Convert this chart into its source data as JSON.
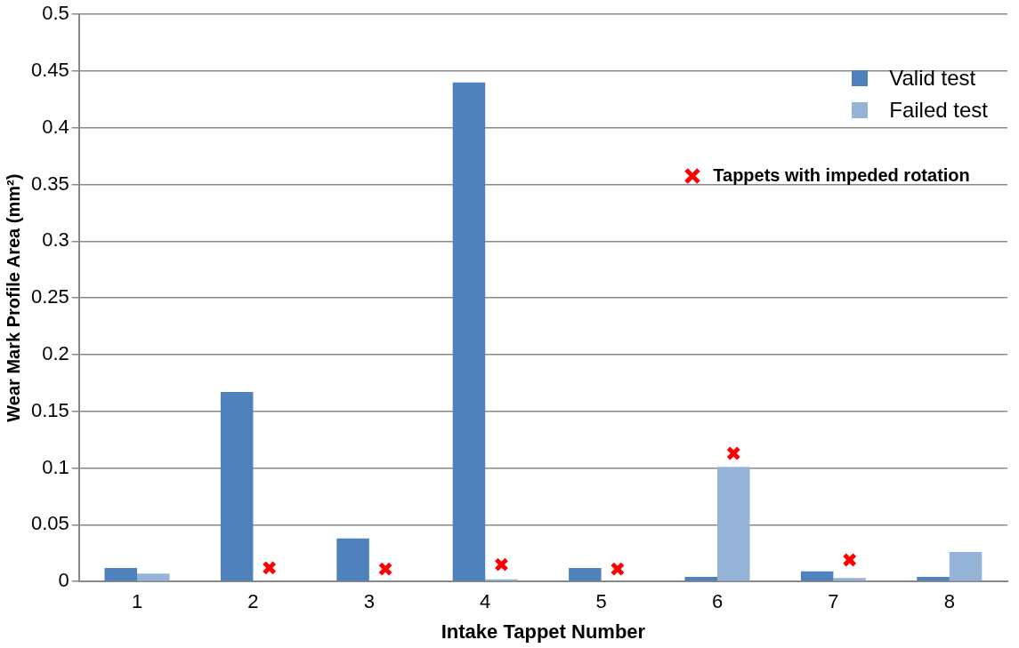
{
  "chart_data": {
    "type": "bar",
    "xlabel": "Intake Tappet Number",
    "ylabel": "Wear Mark Profile Area (mm²)",
    "categories": [
      "1",
      "2",
      "3",
      "4",
      "5",
      "6",
      "7",
      "8"
    ],
    "series": [
      {
        "name": "Valid test",
        "color": "#4f81bd",
        "values": [
          0.012,
          0.167,
          0.038,
          0.44,
          0.012,
          0.004,
          0.009,
          0.004
        ]
      },
      {
        "name": "Failed test",
        "color": "#95b3d7",
        "values": [
          0.007,
          0,
          0,
          0.002,
          0,
          0.101,
          0.003,
          0.026
        ]
      },
      {
        "name": "Tappets with impeded rotation",
        "type": "scatter",
        "marker": "cross",
        "color": "#ff0000",
        "x": [
          "2",
          "3",
          "4",
          "5",
          "6",
          "7"
        ],
        "values": [
          0.012,
          0.011,
          0.015,
          0.011,
          0.113,
          0.019
        ]
      }
    ],
    "ylim": [
      0,
      0.5
    ],
    "yticks": [
      0,
      0.05,
      0.1,
      0.15,
      0.2,
      0.25,
      0.3,
      0.35,
      0.4,
      0.45,
      0.5
    ],
    "grid": "y",
    "legend": "top right"
  }
}
